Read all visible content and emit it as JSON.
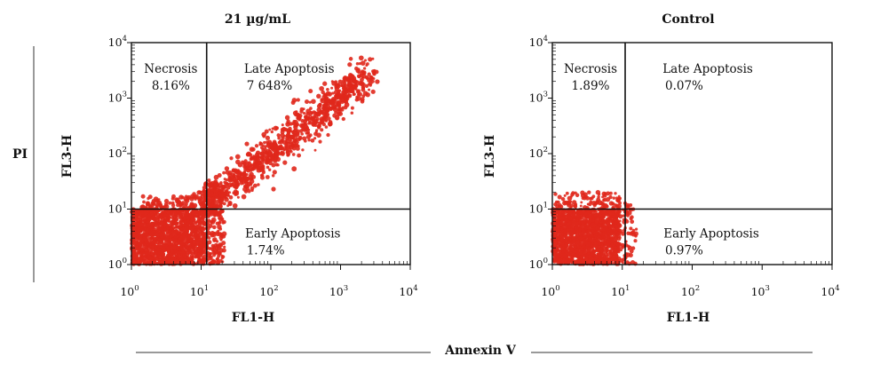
{
  "annotations": {
    "y_measure": "PI",
    "x_measure": "Annexin V"
  },
  "chart_data": [
    {
      "type": "scatter",
      "title": "21 µg/mL",
      "xlabel": "FL1-H",
      "ylabel": "FL3-H",
      "scale": "log",
      "xlim": [
        1,
        10000
      ],
      "ylim": [
        1,
        10000
      ],
      "x_ticks": [
        {
          "base": "10",
          "exp": "0",
          "value": 1
        },
        {
          "base": "10",
          "exp": "1",
          "value": 10
        },
        {
          "base": "10",
          "exp": "2",
          "value": 100
        },
        {
          "base": "10",
          "exp": "3",
          "value": 1000
        },
        {
          "base": "10",
          "exp": "4",
          "value": 10000
        }
      ],
      "y_ticks": [
        {
          "base": "10",
          "exp": "0",
          "value": 1
        },
        {
          "base": "10",
          "exp": "1",
          "value": 10
        },
        {
          "base": "10",
          "exp": "2",
          "value": 100
        },
        {
          "base": "10",
          "exp": "3",
          "value": 1000
        },
        {
          "base": "10",
          "exp": "4",
          "value": 10000
        }
      ],
      "quadrant_gates": {
        "x": 12,
        "y": 10
      },
      "quadrants": [
        {
          "name": "Necrosis",
          "percent": "8.16%",
          "position": "top-left"
        },
        {
          "name": "Late Apoptosis",
          "percent": "7 648%",
          "position": "top-right"
        },
        {
          "name": "Early Apoptosis",
          "percent": "1.74%",
          "position": "bottom-right"
        }
      ],
      "point_color": "#e0281c",
      "regions": [
        {
          "shape": "box",
          "x_range": [
            1,
            11
          ],
          "y_range": [
            1,
            10
          ],
          "count": 1400
        },
        {
          "shape": "diagonal",
          "from": [
            12,
            12
          ],
          "to": [
            2600,
            2800
          ],
          "spread_decades": 0.28,
          "count": 900
        },
        {
          "shape": "box",
          "x_range": [
            1.4,
            12
          ],
          "y_range": [
            10,
            17
          ],
          "count": 90
        },
        {
          "shape": "box",
          "x_range": [
            11,
            22
          ],
          "y_range": [
            1,
            10
          ],
          "count": 130
        },
        {
          "shape": "box",
          "x_range": [
            11,
            20
          ],
          "y_range": [
            8,
            30
          ],
          "count": 120
        }
      ]
    },
    {
      "type": "scatter",
      "title": "Control",
      "xlabel": "FL1-H",
      "ylabel": "FL3-H",
      "scale": "log",
      "xlim": [
        1,
        10000
      ],
      "ylim": [
        1,
        10000
      ],
      "x_ticks": [
        {
          "base": "10",
          "exp": "0",
          "value": 1
        },
        {
          "base": "10",
          "exp": "1",
          "value": 10
        },
        {
          "base": "10",
          "exp": "2",
          "value": 100
        },
        {
          "base": "10",
          "exp": "3",
          "value": 1000
        },
        {
          "base": "10",
          "exp": "4",
          "value": 10000
        }
      ],
      "y_ticks": [
        {
          "base": "10",
          "exp": "0",
          "value": 1
        },
        {
          "base": "10",
          "exp": "1",
          "value": 10
        },
        {
          "base": "10",
          "exp": "2",
          "value": 100
        },
        {
          "base": "10",
          "exp": "3",
          "value": 1000
        },
        {
          "base": "10",
          "exp": "4",
          "value": 10000
        }
      ],
      "quadrant_gates": {
        "x": 11,
        "y": 10
      },
      "quadrants": [
        {
          "name": "Necrosis",
          "percent": "1.89%",
          "position": "top-left"
        },
        {
          "name": "Late Apoptosis",
          "percent": "0.07%",
          "position": "top-right"
        },
        {
          "name": "Early Apoptosis",
          "percent": "0.97%",
          "position": "bottom-right"
        }
      ],
      "point_color": "#e0281c",
      "regions": [
        {
          "shape": "box",
          "x_range": [
            1,
            9
          ],
          "y_range": [
            1,
            10
          ],
          "count": 1400
        },
        {
          "shape": "box",
          "x_range": [
            1,
            12
          ],
          "y_range": [
            8,
            20
          ],
          "count": 140
        },
        {
          "shape": "box",
          "x_range": [
            8,
            16
          ],
          "y_range": [
            1,
            12
          ],
          "count": 80
        }
      ]
    }
  ]
}
